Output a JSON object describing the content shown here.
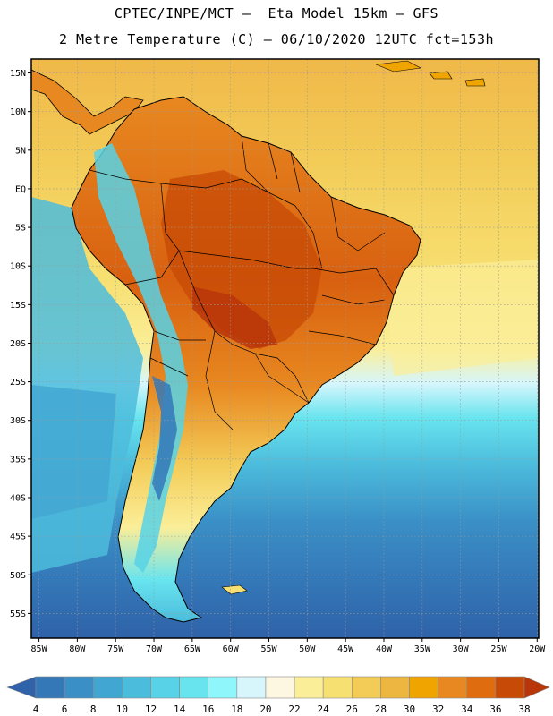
{
  "title_line1": "CPTEC/INPE/MCT –  Eta Model 15km – GFS",
  "title_line2": "2 Metre Temperature (C) – 06/10/2020 12UTC fct=153h",
  "lat_labels": [
    "15N",
    "10N",
    "5N",
    "EQ",
    "5S",
    "10S",
    "15S",
    "20S",
    "25S",
    "30S",
    "35S",
    "40S",
    "45S",
    "50S",
    "55S"
  ],
  "lon_labels": [
    "85W",
    "80W",
    "75W",
    "70W",
    "65W",
    "60W",
    "55W",
    "50W",
    "45W",
    "40W",
    "35W",
    "30W",
    "25W",
    "20W"
  ],
  "colorbar": {
    "labels": [
      "4",
      "6",
      "8",
      "10",
      "12",
      "14",
      "16",
      "18",
      "20",
      "22",
      "24",
      "26",
      "28",
      "30",
      "32",
      "34",
      "36",
      "38"
    ],
    "colors": [
      "#2f62a8",
      "#3478b8",
      "#3a8fc6",
      "#42a6d2",
      "#4cbcdc",
      "#57d2e6",
      "#68e4ef",
      "#8ff6fc",
      "#d6f6fc",
      "#fdf6e0",
      "#fbee98",
      "#f7e072",
      "#f3cc58",
      "#edb640",
      "#f0a400",
      "#e88820",
      "#e06c10",
      "#c74a06",
      "#b8360a"
    ]
  },
  "colors": {
    "ocean_cold": "#2f62a8",
    "ocean_mid": "#3a8fc6",
    "ocean_cool": "#4cbcdc",
    "ocean_light": "#68e4ef",
    "ocean_pale": "#d6f6fc",
    "ocean_warm": "#f7e072",
    "land_hot": "#c74a06",
    "land_warm": "#e88820",
    "border": "#000000",
    "grid": "#9a9a9a"
  }
}
